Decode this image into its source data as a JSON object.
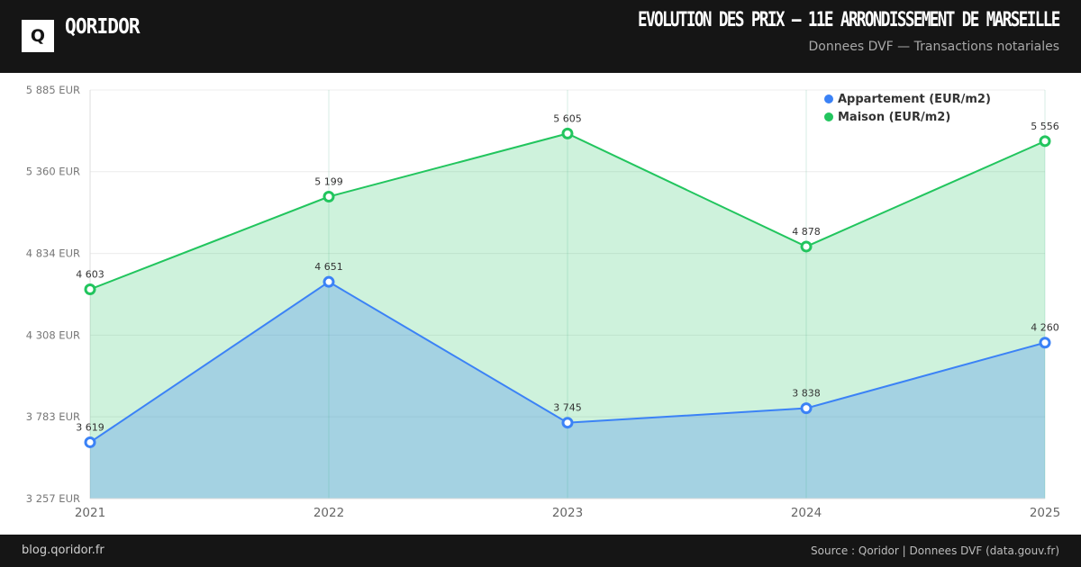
{
  "header": {
    "logo_letter": "Q",
    "brand": "QORIDOR",
    "title": "EVOLUTION DES PRIX — 11E ARRONDISSEMENT DE MARSEILLE",
    "subtitle": "Donnees DVF — Transactions notariales"
  },
  "footer": {
    "site": "blog.qoridor.fr",
    "source": "Source : Qoridor | Donnees DVF (data.gouv.fr)"
  },
  "colors": {
    "appartement": "#3b82f6",
    "maison": "#22c55e",
    "header_bg": "#151515"
  },
  "chart_data": {
    "type": "area",
    "title": "EVOLUTION DES PRIX — 11E ARRONDISSEMENT DE MARSEILLE",
    "subtitle": "Donnees DVF — Transactions notariales",
    "categories": [
      "2021",
      "2022",
      "2023",
      "2024",
      "2025"
    ],
    "series": [
      {
        "name": "Appartement (EUR/m2)",
        "values": [
          3619,
          4651,
          3745,
          3838,
          4260
        ],
        "labels": [
          "3 619",
          "4 651",
          "3 745",
          "3 838",
          "4 260"
        ],
        "color": "#3b82f6"
      },
      {
        "name": "Maison (EUR/m2)",
        "values": [
          4603,
          5199,
          5605,
          4878,
          5556
        ],
        "labels": [
          "4 603",
          "5 199",
          "5 605",
          "4 878",
          "5 556"
        ],
        "color": "#22c55e"
      }
    ],
    "ylim": [
      3257,
      5885
    ],
    "yticks": [
      3257,
      3783,
      4308,
      4834,
      5360,
      5885
    ],
    "ytick_labels": [
      "3 257 EUR",
      "3 783 EUR",
      "4 308 EUR",
      "4 834 EUR",
      "5 360 EUR",
      "5 885 EUR"
    ],
    "xlabel": "",
    "ylabel": "",
    "grid": true,
    "legend_position": "top-right"
  }
}
